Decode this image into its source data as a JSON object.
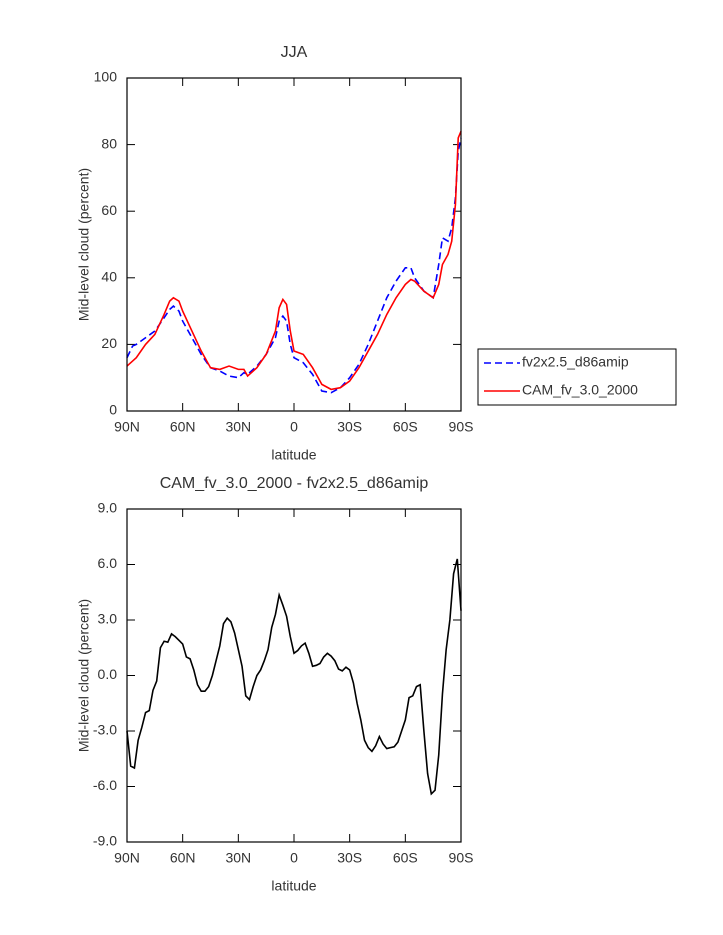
{
  "chart_data": [
    {
      "type": "line",
      "title": "JJA",
      "xlabel": "latitude",
      "ylabel": "Mid-level cloud (percent)",
      "x": [
        90,
        87,
        85,
        80,
        75,
        70,
        67,
        65,
        62,
        60,
        55,
        50,
        45,
        40,
        35,
        30,
        27,
        25,
        20,
        15,
        10,
        8,
        6,
        4,
        2,
        0,
        -5,
        -10,
        -15,
        -20,
        -25,
        -30,
        -35,
        -40,
        -45,
        -50,
        -55,
        -60,
        -63,
        -65,
        -70,
        -75,
        -78,
        -80,
        -83,
        -85,
        -87,
        -88.5,
        -90
      ],
      "series": [
        {
          "name": "fv2x2.5_d86amip",
          "color": "#0000ff",
          "dash": true,
          "values": [
            16,
            19.5,
            20,
            22,
            24,
            28,
            30.5,
            31.5,
            30,
            27,
            22,
            17,
            13,
            12,
            10.5,
            10,
            11.5,
            11,
            13.5,
            17,
            22,
            27,
            28.5,
            27,
            20,
            16,
            14.5,
            11,
            6,
            5.5,
            7,
            10,
            14,
            20,
            27,
            34,
            39,
            43,
            43,
            40,
            36,
            34,
            44,
            52,
            51,
            55,
            64,
            78,
            82
          ]
        },
        {
          "name": "CAM_fv_3.0_2000",
          "color": "#ff0000",
          "dash": false,
          "values": [
            13.5,
            15,
            16,
            20,
            23,
            29,
            33,
            34,
            33,
            30,
            24,
            18,
            13,
            12.5,
            13.5,
            12.5,
            12.5,
            10.5,
            13,
            17,
            24,
            31,
            33.5,
            32,
            24,
            18,
            17,
            13,
            8,
            6.5,
            7,
            9,
            13,
            18,
            23,
            29,
            34,
            38,
            39.5,
            39,
            36,
            34,
            38,
            44,
            47,
            51,
            62,
            82,
            84
          ]
        }
      ],
      "xlim": [
        90,
        -90
      ],
      "xticks": [
        {
          "value": 90,
          "label": "90N"
        },
        {
          "value": 60,
          "label": "60N"
        },
        {
          "value": 30,
          "label": "30N"
        },
        0,
        {
          "value": -30,
          "label": "30S"
        },
        {
          "value": -60,
          "label": "60S"
        },
        {
          "value": -90,
          "label": "90S"
        }
      ],
      "ylim": [
        0,
        100
      ],
      "yticks": [
        0,
        20,
        40,
        60,
        80,
        100
      ],
      "legend": "right"
    },
    {
      "type": "line",
      "title": "CAM_fv_3.0_2000 - fv2x2.5_d86amip",
      "xlabel": "latitude",
      "ylabel": "Mid-level cloud (percent)",
      "x": [
        90,
        88,
        86,
        84,
        82,
        80,
        78,
        76,
        74,
        72,
        70,
        68,
        66,
        64,
        62,
        60,
        58,
        56,
        54,
        52,
        50,
        48,
        46,
        44,
        42,
        40,
        38,
        36,
        34,
        32,
        30,
        28,
        26,
        24,
        22,
        20,
        18,
        16,
        14,
        12,
        10,
        8,
        6,
        4,
        2,
        0,
        -2,
        -4,
        -6,
        -8,
        -10,
        -12,
        -14,
        -16,
        -18,
        -20,
        -22,
        -24,
        -26,
        -28,
        -30,
        -32,
        -34,
        -36,
        -38,
        -40,
        -42,
        -44,
        -46,
        -48,
        -50,
        -52,
        -54,
        -56,
        -58,
        -60,
        -62,
        -64,
        -66,
        -68,
        -70,
        -72,
        -74,
        -76,
        -78,
        -80,
        -82,
        -84,
        -86,
        -88,
        -90
      ],
      "series": [
        {
          "color": "#000000",
          "dash": false,
          "values": [
            -3.0,
            -4.9,
            -5.0,
            -3.5,
            -2.8,
            -2.0,
            -1.9,
            -0.8,
            -0.3,
            1.5,
            1.85,
            1.8,
            2.25,
            2.1,
            1.9,
            1.7,
            1.0,
            0.9,
            0.3,
            -0.5,
            -0.85,
            -0.85,
            -0.6,
            0,
            0.8,
            1.6,
            2.8,
            3.1,
            2.9,
            2.3,
            1.4,
            0.5,
            -1.1,
            -1.3,
            -0.6,
            0,
            0.3,
            0.8,
            1.4,
            2.6,
            3.3,
            4.35,
            3.8,
            3.2,
            2.1,
            1.2,
            1.35,
            1.6,
            1.75,
            1.2,
            0.5,
            0.55,
            0.65,
            1.0,
            1.2,
            1.05,
            0.8,
            0.35,
            0.25,
            0.45,
            0.3,
            -0.4,
            -1.5,
            -2.4,
            -3.5,
            -3.9,
            -4.1,
            -3.8,
            -3.3,
            -3.7,
            -3.95,
            -3.9,
            -3.85,
            -3.6,
            -3.0,
            -2.4,
            -1.2,
            -1.1,
            -0.6,
            -0.5,
            -3.0,
            -5.3,
            -6.4,
            -6.2,
            -4.3,
            -1.0,
            1.4,
            3.0,
            5.5,
            6.3,
            3.5
          ]
        }
      ],
      "xlim": [
        90,
        -90
      ],
      "xticks": [
        {
          "value": 90,
          "label": "90N"
        },
        {
          "value": 60,
          "label": "60N"
        },
        {
          "value": 30,
          "label": "30N"
        },
        0,
        {
          "value": -30,
          "label": "30S"
        },
        {
          "value": -60,
          "label": "60S"
        },
        {
          "value": -90,
          "label": "90S"
        }
      ],
      "ylim": [
        -9,
        9
      ],
      "yticks": [
        {
          "value": -9,
          "label": "-9.0"
        },
        {
          "value": -6,
          "label": "-6.0"
        },
        {
          "value": -3,
          "label": "-3.0"
        },
        {
          "value": 0,
          "label": "0.0"
        },
        {
          "value": 3,
          "label": "3.0"
        },
        {
          "value": 6,
          "label": "6.0"
        },
        {
          "value": 9,
          "label": "9.0"
        }
      ]
    }
  ]
}
